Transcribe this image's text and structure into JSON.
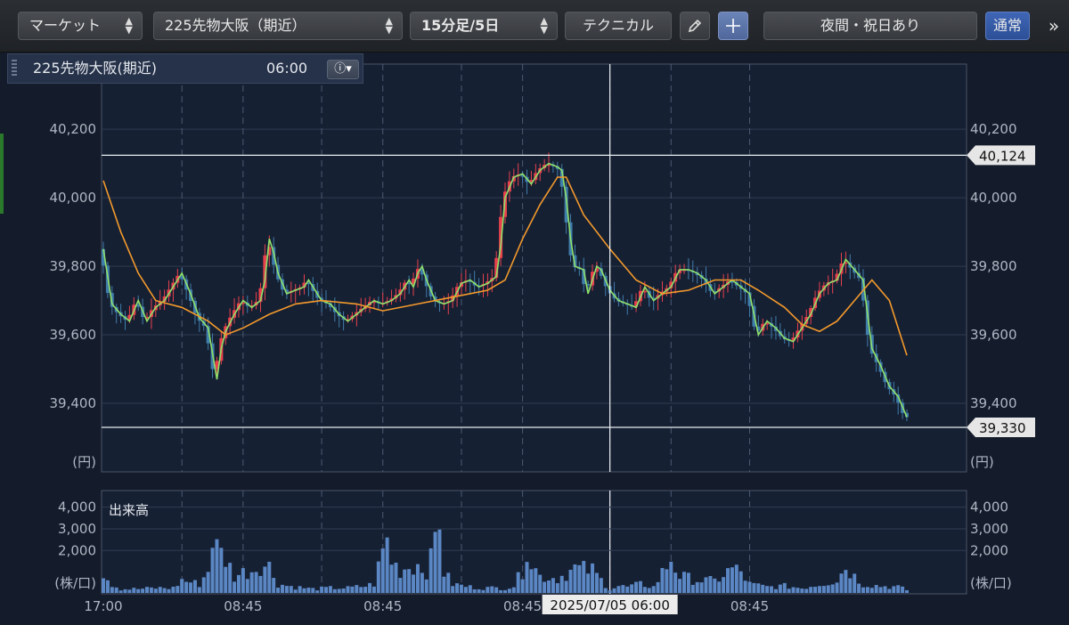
{
  "toolbar": {
    "market_label": "マーケット",
    "symbol_label": "225先物大阪（期近）",
    "interval_label": "15分足/5日",
    "technical_label": "テクニカル",
    "pencil_icon": "pencil-icon",
    "crosshair_icon": "crosshair-icon",
    "session_label": "夜間・祝日あり",
    "mode_label": "通常",
    "more_label": "»"
  },
  "legend": {
    "name": "225先物大阪(期近)",
    "time": "06:00",
    "info_icon": "info-icon"
  },
  "colors": {
    "up": "#e8414d",
    "down": "#3f7dab",
    "ma_short": "#8fe06a",
    "ma_long": "#f39a2c",
    "volume": "#5b87c4",
    "grid": "#2f3b52",
    "frame": "#4a5568"
  },
  "chart_data": [
    {
      "type": "candlestick",
      "title": "",
      "unit": "(円)",
      "y_ticks": [
        "40,200",
        "40,000",
        "39,800",
        "39,600",
        "39,400"
      ],
      "y_tick_values": [
        40200,
        40000,
        39800,
        39600,
        39400
      ],
      "ylim": [
        39200,
        40390
      ],
      "x_ticks": [
        "17:00",
        "08:45",
        "08:45",
        "08:45",
        "08:45"
      ],
      "x_tick_index": [
        0,
        32,
        64,
        96,
        148
      ],
      "day_break_index": [
        18,
        32,
        50,
        64,
        82,
        96,
        116,
        130,
        148
      ],
      "high_price": 40124,
      "high_label": "40,124",
      "low_price": 39330,
      "low_label": "39,330",
      "cursor_index": 116,
      "cursor_label": "2025/07/05 06:00",
      "close_path": [
        [
          0,
          39850
        ],
        [
          2,
          39690
        ],
        [
          4,
          39660
        ],
        [
          6,
          39640
        ],
        [
          8,
          39700
        ],
        [
          10,
          39640
        ],
        [
          12,
          39680
        ],
        [
          14,
          39700
        ],
        [
          16,
          39740
        ],
        [
          18,
          39780
        ],
        [
          20,
          39720
        ],
        [
          22,
          39650
        ],
        [
          24,
          39620
        ],
        [
          26,
          39470
        ],
        [
          27,
          39560
        ],
        [
          28,
          39610
        ],
        [
          30,
          39660
        ],
        [
          32,
          39700
        ],
        [
          34,
          39680
        ],
        [
          36,
          39700
        ],
        [
          37,
          39760
        ],
        [
          38,
          39880
        ],
        [
          39,
          39840
        ],
        [
          40,
          39780
        ],
        [
          42,
          39720
        ],
        [
          44,
          39730
        ],
        [
          46,
          39740
        ],
        [
          47,
          39760
        ],
        [
          48,
          39740
        ],
        [
          50,
          39700
        ],
        [
          52,
          39690
        ],
        [
          54,
          39660
        ],
        [
          56,
          39640
        ],
        [
          58,
          39660
        ],
        [
          60,
          39680
        ],
        [
          62,
          39700
        ],
        [
          64,
          39690
        ],
        [
          66,
          39700
        ],
        [
          68,
          39720
        ],
        [
          70,
          39760
        ],
        [
          71,
          39740
        ],
        [
          72,
          39780
        ],
        [
          73,
          39800
        ],
        [
          74,
          39760
        ],
        [
          76,
          39700
        ],
        [
          78,
          39690
        ],
        [
          80,
          39700
        ],
        [
          82,
          39750
        ],
        [
          84,
          39760
        ],
        [
          86,
          39740
        ],
        [
          88,
          39750
        ],
        [
          90,
          39770
        ],
        [
          91,
          39860
        ],
        [
          92,
          40000
        ],
        [
          94,
          40060
        ],
        [
          96,
          40070
        ],
        [
          98,
          40040
        ],
        [
          100,
          40080
        ],
        [
          102,
          40100
        ],
        [
          104,
          40090
        ],
        [
          105,
          40080
        ],
        [
          106,
          40000
        ],
        [
          107,
          39880
        ],
        [
          108,
          39800
        ],
        [
          110,
          39790
        ],
        [
          111,
          39720
        ],
        [
          112,
          39760
        ],
        [
          113,
          39800
        ],
        [
          114,
          39790
        ],
        [
          116,
          39730
        ],
        [
          118,
          39700
        ],
        [
          120,
          39690
        ],
        [
          122,
          39680
        ],
        [
          124,
          39740
        ],
        [
          126,
          39700
        ],
        [
          128,
          39720
        ],
        [
          130,
          39740
        ],
        [
          132,
          39790
        ],
        [
          134,
          39790
        ],
        [
          136,
          39780
        ],
        [
          138,
          39760
        ],
        [
          140,
          39720
        ],
        [
          142,
          39740
        ],
        [
          144,
          39760
        ],
        [
          146,
          39740
        ],
        [
          148,
          39720
        ],
        [
          150,
          39600
        ],
        [
          152,
          39640
        ],
        [
          154,
          39620
        ],
        [
          156,
          39590
        ],
        [
          158,
          39580
        ],
        [
          160,
          39620
        ],
        [
          162,
          39660
        ],
        [
          164,
          39720
        ],
        [
          166,
          39750
        ],
        [
          168,
          39760
        ],
        [
          170,
          39820
        ],
        [
          172,
          39790
        ],
        [
          174,
          39760
        ],
        [
          176,
          39560
        ],
        [
          178,
          39510
        ],
        [
          180,
          39450
        ],
        [
          182,
          39420
        ],
        [
          184,
          39360
        ]
      ],
      "ma_long": [
        [
          0,
          40050
        ],
        [
          4,
          39900
        ],
        [
          8,
          39780
        ],
        [
          12,
          39700
        ],
        [
          18,
          39680
        ],
        [
          24,
          39640
        ],
        [
          28,
          39600
        ],
        [
          32,
          39620
        ],
        [
          38,
          39660
        ],
        [
          44,
          39690
        ],
        [
          50,
          39700
        ],
        [
          58,
          39690
        ],
        [
          64,
          39670
        ],
        [
          72,
          39690
        ],
        [
          80,
          39710
        ],
        [
          88,
          39730
        ],
        [
          92,
          39760
        ],
        [
          96,
          39880
        ],
        [
          100,
          39980
        ],
        [
          104,
          40060
        ],
        [
          106,
          40060
        ],
        [
          110,
          39950
        ],
        [
          116,
          39850
        ],
        [
          122,
          39760
        ],
        [
          128,
          39720
        ],
        [
          134,
          39730
        ],
        [
          140,
          39760
        ],
        [
          146,
          39760
        ],
        [
          150,
          39730
        ],
        [
          156,
          39680
        ],
        [
          160,
          39630
        ],
        [
          164,
          39610
        ],
        [
          168,
          39640
        ],
        [
          172,
          39700
        ],
        [
          176,
          39760
        ],
        [
          180,
          39700
        ],
        [
          184,
          39540
        ]
      ]
    },
    {
      "type": "bar",
      "title": "出来高",
      "unit": "(株/口)",
      "y_ticks": [
        "4,000",
        "3,000",
        "2,000"
      ],
      "y_tick_values": [
        4000,
        3000,
        2000
      ],
      "ylim": [
        0,
        4600
      ],
      "volume_path": [
        [
          0,
          1100
        ],
        [
          2,
          500
        ],
        [
          4,
          250
        ],
        [
          8,
          250
        ],
        [
          12,
          300
        ],
        [
          16,
          300
        ],
        [
          18,
          700
        ],
        [
          22,
          500
        ],
        [
          24,
          1200
        ],
        [
          25,
          3000
        ],
        [
          26,
          2300
        ],
        [
          28,
          1800
        ],
        [
          30,
          900
        ],
        [
          32,
          1100
        ],
        [
          34,
          1200
        ],
        [
          36,
          1500
        ],
        [
          38,
          1400
        ],
        [
          40,
          500
        ],
        [
          44,
          350
        ],
        [
          48,
          250
        ],
        [
          52,
          300
        ],
        [
          56,
          300
        ],
        [
          60,
          400
        ],
        [
          62,
          500
        ],
        [
          64,
          2200
        ],
        [
          65,
          2700
        ],
        [
          66,
          1700
        ],
        [
          68,
          1200
        ],
        [
          70,
          1400
        ],
        [
          72,
          1500
        ],
        [
          74,
          1200
        ],
        [
          75,
          1700
        ],
        [
          76,
          2900
        ],
        [
          77,
          4100
        ],
        [
          78,
          1100
        ],
        [
          80,
          500
        ],
        [
          84,
          350
        ],
        [
          88,
          300
        ],
        [
          92,
          300
        ],
        [
          94,
          400
        ],
        [
          96,
          1200
        ],
        [
          97,
          2600
        ],
        [
          98,
          1600
        ],
        [
          100,
          900
        ],
        [
          104,
          800
        ],
        [
          108,
          1300
        ],
        [
          112,
          1200
        ],
        [
          114,
          700
        ],
        [
          116,
          250
        ],
        [
          118,
          400
        ],
        [
          120,
          350
        ],
        [
          123,
          500
        ],
        [
          126,
          350
        ],
        [
          130,
          1800
        ],
        [
          132,
          900
        ],
        [
          136,
          700
        ],
        [
          140,
          650
        ],
        [
          144,
          1300
        ],
        [
          146,
          1100
        ],
        [
          148,
          500
        ],
        [
          152,
          350
        ],
        [
          156,
          400
        ],
        [
          160,
          300
        ],
        [
          164,
          500
        ],
        [
          168,
          700
        ],
        [
          170,
          1400
        ],
        [
          172,
          900
        ],
        [
          174,
          500
        ],
        [
          178,
          400
        ],
        [
          182,
          350
        ],
        [
          184,
          200
        ]
      ]
    }
  ]
}
